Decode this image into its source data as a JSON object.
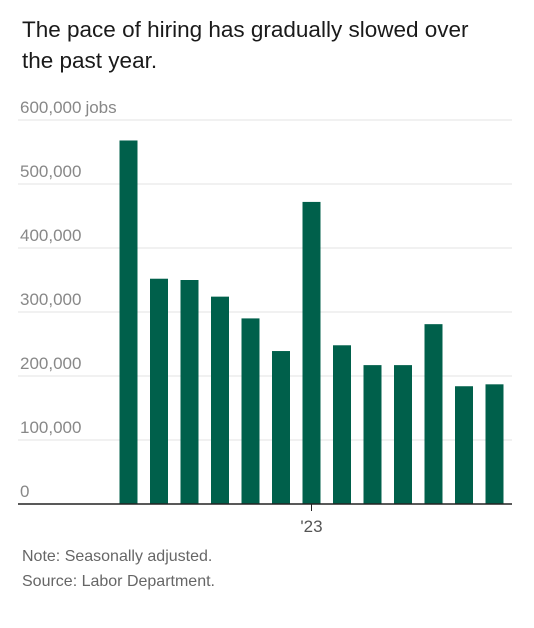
{
  "title": "The pace of hiring has gradually slowed over the past year.",
  "note": "Note: Seasonally adjusted.",
  "source": "Source: Labor Department.",
  "colors": {
    "bar": "#00604b",
    "grid": "#e3e3e3",
    "axis": "#222222"
  },
  "chart_data": {
    "type": "bar",
    "title": "",
    "xlabel": "",
    "ylabel": "jobs",
    "ylim": [
      0,
      600000
    ],
    "yticks": [
      0,
      100000,
      200000,
      300000,
      400000,
      500000,
      600000
    ],
    "ytick_labels": [
      "0",
      "100,000",
      "200,000",
      "300,000",
      "400,000",
      "500,000",
      "600,000"
    ],
    "top_tick_unit": "jobs",
    "xtick_labels": [
      "'23"
    ],
    "xtick_index": 6,
    "grid": true,
    "values": [
      568000,
      352000,
      350000,
      324000,
      290000,
      239000,
      472000,
      248000,
      217000,
      217000,
      281000,
      184000,
      187000
    ]
  }
}
